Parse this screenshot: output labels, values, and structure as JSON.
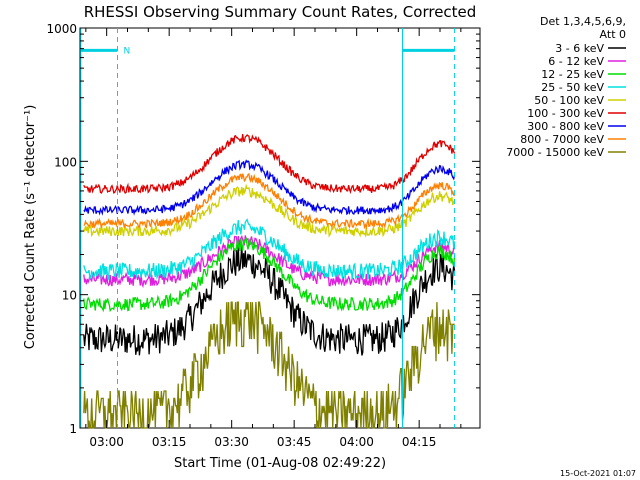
{
  "chart_data": {
    "type": "line",
    "title": "RHESSI Observing Summary Count Rates, Corrected",
    "xlabel": "Start Time (01-Aug-08 02:49:22)",
    "ylabel": "Corrected Count Rate (s⁻¹ detector⁻¹)",
    "y_scale": "log",
    "ylim": [
      1,
      1000
    ],
    "xlim_minutes": [
      -6.4,
      89.6
    ],
    "x_ticks": [
      {
        "label": "03:00",
        "m": 0
      },
      {
        "label": "03:15",
        "m": 15
      },
      {
        "label": "03:30",
        "m": 30
      },
      {
        "label": "03:45",
        "m": 45
      },
      {
        "label": "04:00",
        "m": 60
      },
      {
        "label": "04:15",
        "m": 75
      }
    ],
    "y_ticks": [
      {
        "label": "1",
        "v": 1
      },
      {
        "label": "10",
        "v": 10
      },
      {
        "label": "100",
        "v": 100
      },
      {
        "label": "1000",
        "v": 1000
      }
    ],
    "legend_header": [
      "Det 1,3,4,5,6,9,",
      "Att 0"
    ],
    "legend_position": "right",
    "night_markers": [
      {
        "m": -6.2,
        "style": "solid"
      },
      {
        "m": 2.6,
        "style": "dashed"
      },
      {
        "m": 71.0,
        "style": "solid"
      },
      {
        "m": 83.5,
        "style": "dashed"
      }
    ],
    "flag_bars": [
      {
        "m_start": -6.2,
        "m_end": 2.6,
        "v": 680,
        "label": "N"
      },
      {
        "m_start": 71.0,
        "m_end": 83.5,
        "v": 680,
        "label": ""
      }
    ],
    "series": [
      {
        "name": "3 - 6 keV",
        "color": "#000000",
        "base": 4.6,
        "peak": 18,
        "peak2": 16,
        "noise": 0.12
      },
      {
        "name": "6 - 12 keV",
        "color": "#e020e0",
        "base": 13,
        "peak": 25,
        "peak2": 23,
        "noise": 0.05
      },
      {
        "name": "12 - 25 keV",
        "color": "#00dd00",
        "base": 8.5,
        "peak": 24,
        "peak2": 21,
        "noise": 0.05
      },
      {
        "name": "25 - 50 keV",
        "color": "#00e0e0",
        "base": 15,
        "peak": 32,
        "peak2": 27,
        "noise": 0.06
      },
      {
        "name": "50 - 100 keV",
        "color": "#d0d000",
        "base": 30,
        "peak": 60,
        "peak2": 55,
        "noise": 0.04
      },
      {
        "name": "100 - 300 keV",
        "color": "#e00000",
        "base": 62,
        "peak": 150,
        "peak2": 135,
        "noise": 0.03
      },
      {
        "name": "300 - 800 keV",
        "color": "#0000ee",
        "base": 43,
        "peak": 95,
        "peak2": 88,
        "noise": 0.03
      },
      {
        "name": "800 - 7000 keV",
        "color": "#ff8000",
        "base": 34,
        "peak": 76,
        "peak2": 66,
        "noise": 0.03
      },
      {
        "name": "7000 - 15000 keV",
        "color": "#808000",
        "base": 1.3,
        "peak": 7,
        "peak2": 6,
        "noise": 0.1
      }
    ]
  },
  "footer": {
    "date": "15-Oct-2021 01:07"
  }
}
